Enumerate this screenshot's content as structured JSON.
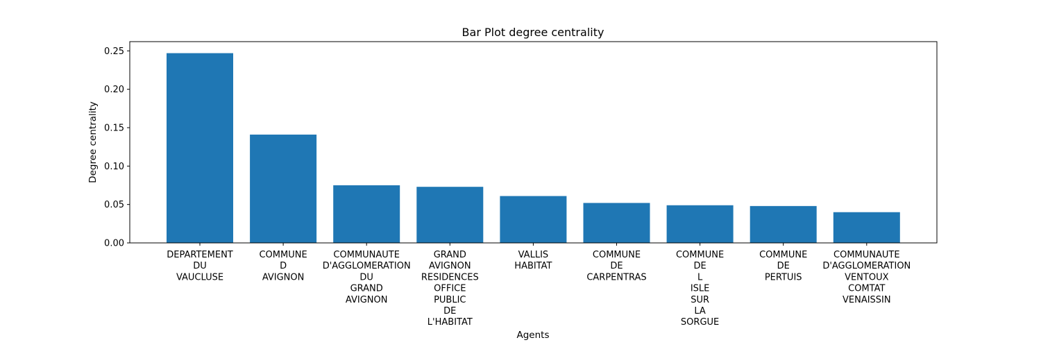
{
  "chart_data": {
    "type": "bar",
    "title": "Bar Plot degree centrality",
    "xlabel": "Agents",
    "ylabel": "Degree centrality",
    "ylim": [
      0,
      0.262
    ],
    "yticks": [
      "0.00",
      "0.05",
      "0.10",
      "0.15",
      "0.20",
      "0.25"
    ],
    "grid": false,
    "bar_color": "#1f77b4",
    "categories": [
      "DEPARTEMENT\nDU\nVAUCLUSE",
      "COMMUNE\nD\nAVIGNON",
      "COMMUNAUTE\nD'AGGLOMERATION\nDU\nGRAND\nAVIGNON",
      "GRAND\nAVIGNON\nRESIDENCES\nOFFICE\nPUBLIC\nDE\nL'HABITAT",
      "VALLIS\nHABITAT",
      "COMMUNE\nDE\nCARPENTRAS",
      "COMMUNE\nDE\nL\nISLE\nSUR\nLA\nSORGUE",
      "COMMUNE\nDE\nPERTUIS",
      "COMMUNAUTE\nD'AGGLOMERATION\nVENTOUX\nCOMTAT\nVENAISSIN"
    ],
    "values": [
      0.247,
      0.141,
      0.075,
      0.073,
      0.061,
      0.052,
      0.049,
      0.048,
      0.04
    ]
  }
}
